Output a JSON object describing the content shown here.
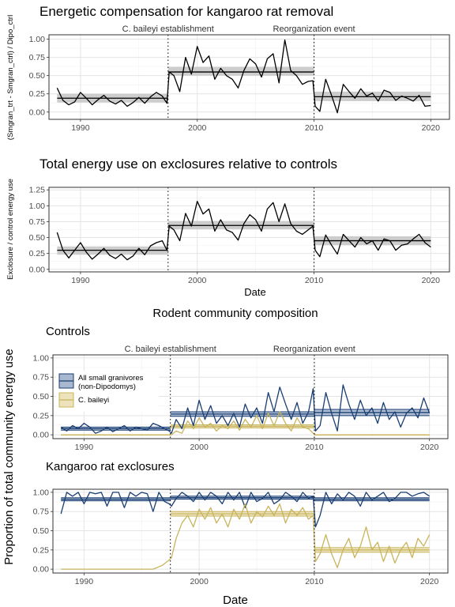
{
  "figure_title": "Rodent community composition",
  "shared_ylabel": "Proportion of total community energy use",
  "shared_xlabel": "Date",
  "colors": {
    "granivores": "#1a3e72",
    "granivores_fill": "#a8b8cf",
    "baileyi": "#c8b45c",
    "baileyi_fill": "#ece2bb",
    "band": "#c8c8c8"
  },
  "chart_data": [
    {
      "type": "line",
      "title": "Energetic compensation for kangaroo rat removal",
      "xlabel": "",
      "ylabel": "(Smgran_trt - Smgran_ctrl) / Dipo_ctrl",
      "xlim": [
        1987.3,
        2021.6
      ],
      "ylim": [
        -0.1,
        1.06
      ],
      "xticks": [
        1990,
        2000,
        2010,
        2020
      ],
      "yticks": [
        0.0,
        0.25,
        0.5,
        0.75,
        1.0
      ],
      "ytick_labels": [
        "0.00",
        "0.25",
        "0.50",
        "0.75",
        "1.00"
      ],
      "vlines": [
        {
          "x": 1997.5,
          "label": "C. baileyi establishment"
        },
        {
          "x": 2010.0,
          "label": "Reorganization event"
        }
      ],
      "x": [
        1988.0,
        1988.5,
        1989.0,
        1989.5,
        1990.0,
        1990.5,
        1991.0,
        1991.5,
        1992.0,
        1992.5,
        1993.0,
        1993.5,
        1994.0,
        1994.5,
        1995.0,
        1995.5,
        1996.0,
        1996.5,
        1997.0,
        1997.4,
        1997.6,
        1998.0,
        1998.5,
        1999.0,
        1999.5,
        2000.0,
        2000.5,
        2001.0,
        2001.5,
        2002.0,
        2002.5,
        2003.0,
        2003.5,
        2004.0,
        2004.5,
        2005.0,
        2005.5,
        2006.0,
        2006.5,
        2007.0,
        2007.5,
        2008.0,
        2008.5,
        2009.0,
        2009.5,
        2009.9,
        2010.1,
        2010.5,
        2011.0,
        2011.5,
        2012.0,
        2012.5,
        2013.0,
        2013.5,
        2014.0,
        2014.5,
        2015.0,
        2015.5,
        2016.0,
        2016.5,
        2017.0,
        2017.5,
        2018.0,
        2018.5,
        2019.0,
        2019.5,
        2020.0
      ],
      "y": [
        0.33,
        0.16,
        0.1,
        0.14,
        0.27,
        0.19,
        0.1,
        0.17,
        0.23,
        0.15,
        0.11,
        0.16,
        0.08,
        0.13,
        0.2,
        0.12,
        0.21,
        0.27,
        0.22,
        0.12,
        0.55,
        0.5,
        0.28,
        0.75,
        0.52,
        0.9,
        0.68,
        0.77,
        0.45,
        0.6,
        0.5,
        0.45,
        0.33,
        0.57,
        0.73,
        0.66,
        0.48,
        0.73,
        0.8,
        0.4,
        0.99,
        0.57,
        0.5,
        0.38,
        0.42,
        0.43,
        0.08,
        0.01,
        0.45,
        0.23,
        -0.01,
        0.38,
        0.28,
        0.19,
        0.32,
        0.22,
        0.26,
        0.15,
        0.3,
        0.27,
        0.16,
        0.22,
        0.19,
        0.15,
        0.23,
        0.08,
        0.09
      ],
      "segments": [
        {
          "x0": 1988.0,
          "x1": 1997.5,
          "mean": 0.19,
          "lo": 0.13,
          "hi": 0.25
        },
        {
          "x0": 1997.5,
          "x1": 2010.0,
          "mean": 0.55,
          "lo": 0.5,
          "hi": 0.62
        },
        {
          "x0": 2010.0,
          "x1": 2020.0,
          "mean": 0.21,
          "lo": 0.15,
          "hi": 0.28
        }
      ]
    },
    {
      "type": "line",
      "title": "Total energy use on exclosures relative to controls",
      "xlabel": "Date",
      "ylabel": "Exclosure / control energy use",
      "xlim": [
        1987.3,
        2021.6
      ],
      "ylim": [
        -0.04,
        1.29
      ],
      "xticks": [
        1990,
        2000,
        2010,
        2020
      ],
      "yticks": [
        0.0,
        0.25,
        0.5,
        0.75,
        1.0,
        1.25
      ],
      "ytick_labels": [
        "0.00",
        "0.25",
        "0.50",
        "0.75",
        "1.00",
        "1.25"
      ],
      "vlines": [
        {
          "x": 1997.5,
          "label": ""
        },
        {
          "x": 2010.0,
          "label": ""
        }
      ],
      "x": [
        1988.0,
        1988.5,
        1989.0,
        1989.5,
        1990.0,
        1990.5,
        1991.0,
        1991.5,
        1992.0,
        1992.5,
        1993.0,
        1993.5,
        1994.0,
        1994.5,
        1995.0,
        1995.5,
        1996.0,
        1996.5,
        1997.0,
        1997.4,
        1997.6,
        1998.0,
        1998.5,
        1999.0,
        1999.5,
        2000.0,
        2000.5,
        2001.0,
        2001.5,
        2002.0,
        2002.5,
        2003.0,
        2003.5,
        2004.0,
        2004.5,
        2005.0,
        2005.5,
        2006.0,
        2006.5,
        2007.0,
        2007.5,
        2008.0,
        2008.5,
        2009.0,
        2009.5,
        2009.9,
        2010.1,
        2010.5,
        2011.0,
        2011.5,
        2012.0,
        2012.5,
        2013.0,
        2013.5,
        2014.0,
        2014.5,
        2015.0,
        2015.5,
        2016.0,
        2016.5,
        2017.0,
        2017.5,
        2018.0,
        2018.5,
        2019.0,
        2019.5,
        2020.0
      ],
      "y": [
        0.58,
        0.3,
        0.18,
        0.3,
        0.42,
        0.27,
        0.16,
        0.24,
        0.33,
        0.22,
        0.17,
        0.24,
        0.15,
        0.21,
        0.33,
        0.23,
        0.37,
        0.42,
        0.45,
        0.3,
        0.68,
        0.62,
        0.45,
        0.88,
        0.68,
        1.07,
        0.87,
        0.95,
        0.6,
        0.78,
        0.62,
        0.58,
        0.46,
        0.72,
        0.86,
        0.78,
        0.6,
        0.95,
        1.05,
        0.75,
        1.03,
        0.72,
        0.6,
        0.55,
        0.62,
        0.68,
        0.3,
        0.2,
        0.54,
        0.38,
        0.24,
        0.55,
        0.45,
        0.35,
        0.5,
        0.4,
        0.45,
        0.3,
        0.48,
        0.45,
        0.3,
        0.38,
        0.4,
        0.48,
        0.55,
        0.42,
        0.35
      ],
      "segments": [
        {
          "x0": 1988.0,
          "x1": 1997.5,
          "mean": 0.3,
          "lo": 0.23,
          "hi": 0.36
        },
        {
          "x0": 1997.5,
          "x1": 2010.0,
          "mean": 0.69,
          "lo": 0.63,
          "hi": 0.76
        },
        {
          "x0": 2010.0,
          "x1": 2020.0,
          "mean": 0.45,
          "lo": 0.38,
          "hi": 0.52
        }
      ]
    },
    {
      "type": "line",
      "title": "Controls",
      "xlabel": "",
      "ylabel": "",
      "xlim": [
        1987.3,
        2021.6
      ],
      "ylim": [
        -0.05,
        1.04
      ],
      "xticks": [
        1990,
        2000,
        2010,
        2020
      ],
      "yticks": [
        0.0,
        0.25,
        0.5,
        0.75,
        1.0
      ],
      "ytick_labels": [
        "0.00",
        "0.25",
        "0.50",
        "0.75",
        "1.00"
      ],
      "vlines": [
        {
          "x": 1997.5,
          "label": "C. baileyi establishment"
        },
        {
          "x": 2010.0,
          "label": "Reorganization event"
        }
      ],
      "legend": [
        {
          "name": "All small granivores",
          "name2": "(non-Dipodomys)",
          "color": "#1a3e72",
          "fill": "#a8b8cf"
        },
        {
          "name": "C. baileyi",
          "name2": "",
          "color": "#c8b45c",
          "fill": "#ece2bb"
        }
      ],
      "legend_position": "top-left",
      "series": [
        {
          "name": "All small granivores (non-Dipodomys)",
          "color": "#1a3e72",
          "x": [
            1988.0,
            1988.5,
            1989.0,
            1989.5,
            1990.0,
            1990.5,
            1991.0,
            1991.5,
            1992.0,
            1992.5,
            1993.0,
            1993.5,
            1994.0,
            1994.5,
            1995.0,
            1995.5,
            1996.0,
            1996.5,
            1997.0,
            1997.4,
            1997.6,
            1998.0,
            1998.5,
            1999.0,
            1999.5,
            2000.0,
            2000.5,
            2001.0,
            2001.5,
            2002.0,
            2002.5,
            2003.0,
            2003.5,
            2004.0,
            2004.5,
            2005.0,
            2005.5,
            2006.0,
            2006.5,
            2007.0,
            2007.5,
            2008.0,
            2008.5,
            2009.0,
            2009.5,
            2009.9,
            2010.1,
            2010.5,
            2011.0,
            2011.5,
            2012.0,
            2012.5,
            2013.0,
            2013.5,
            2014.0,
            2014.5,
            2015.0,
            2015.5,
            2016.0,
            2016.5,
            2017.0,
            2017.5,
            2018.0,
            2018.5,
            2019.0,
            2019.5,
            2020.0
          ],
          "y": [
            0.1,
            0.05,
            0.12,
            0.08,
            0.15,
            0.1,
            0.02,
            0.05,
            0.1,
            0.04,
            0.08,
            0.12,
            0.05,
            0.1,
            0.08,
            0.06,
            0.15,
            0.12,
            0.08,
            0.05,
            0.02,
            0.2,
            0.08,
            0.35,
            0.12,
            0.45,
            0.2,
            0.38,
            0.15,
            0.25,
            0.12,
            0.28,
            0.1,
            0.4,
            0.22,
            0.35,
            0.15,
            0.55,
            0.3,
            0.62,
            0.4,
            0.2,
            0.42,
            0.15,
            0.3,
            0.6,
            0.05,
            0.12,
            0.55,
            0.28,
            0.05,
            0.65,
            0.4,
            0.2,
            0.45,
            0.25,
            0.35,
            0.15,
            0.42,
            0.2,
            0.3,
            0.1,
            0.28,
            0.35,
            0.22,
            0.48,
            0.28
          ]
        },
        {
          "name": "C. baileyi",
          "color": "#c8b45c",
          "x": [
            1988.0,
            1990.0,
            1995.0,
            1997.4,
            1997.6,
            1998.0,
            1998.5,
            1999.0,
            1999.5,
            2000.0,
            2000.5,
            2001.0,
            2001.5,
            2002.0,
            2002.5,
            2003.0,
            2003.5,
            2004.0,
            2004.5,
            2005.0,
            2005.5,
            2006.0,
            2006.5,
            2007.0,
            2007.5,
            2008.0,
            2008.5,
            2009.0,
            2009.5,
            2009.9,
            2010.1,
            2012.0,
            2015.0,
            2018.0,
            2020.0
          ],
          "y": [
            0.0,
            0.0,
            0.0,
            0.0,
            0.0,
            0.05,
            0.02,
            0.18,
            0.08,
            0.22,
            0.1,
            0.15,
            0.05,
            0.12,
            0.08,
            0.18,
            0.06,
            0.2,
            0.1,
            0.25,
            0.08,
            0.28,
            0.12,
            0.3,
            0.15,
            0.05,
            0.22,
            0.1,
            0.08,
            0.02,
            0.0,
            0.0,
            0.0,
            0.0,
            0.0
          ]
        }
      ],
      "segments": [
        {
          "series": 0,
          "x0": 1988.0,
          "x1": 1997.5,
          "mean": 0.08,
          "lo": 0.06,
          "hi": 0.1
        },
        {
          "series": 0,
          "x0": 1997.5,
          "x1": 2010.0,
          "mean": 0.27,
          "lo": 0.24,
          "hi": 0.3
        },
        {
          "series": 0,
          "x0": 2010.0,
          "x1": 2020.0,
          "mean": 0.29,
          "lo": 0.25,
          "hi": 0.33
        },
        {
          "series": 1,
          "x0": 1988.0,
          "x1": 1997.5,
          "mean": 0.0,
          "lo": 0.0,
          "hi": 0.0
        },
        {
          "series": 1,
          "x0": 1997.5,
          "x1": 2010.0,
          "mean": 0.11,
          "lo": 0.09,
          "hi": 0.13
        },
        {
          "series": 1,
          "x0": 2010.0,
          "x1": 2020.0,
          "mean": 0.0,
          "lo": 0.0,
          "hi": 0.0
        }
      ]
    },
    {
      "type": "line",
      "title": "Kangaroo rat exclosures",
      "xlabel": "",
      "ylabel": "",
      "xlim": [
        1987.3,
        2021.6
      ],
      "ylim": [
        -0.05,
        1.04
      ],
      "xticks": [
        1990,
        2000,
        2010,
        2020
      ],
      "yticks": [
        0.0,
        0.25,
        0.5,
        0.75,
        1.0
      ],
      "ytick_labels": [
        "0.00",
        "0.25",
        "0.50",
        "0.75",
        "1.00"
      ],
      "vlines": [
        {
          "x": 1997.5,
          "label": ""
        },
        {
          "x": 2010.0,
          "label": ""
        }
      ],
      "series": [
        {
          "name": "All small granivores (non-Dipodomys)",
          "color": "#1a3e72",
          "x": [
            1988.0,
            1988.5,
            1989.0,
            1989.5,
            1990.0,
            1990.5,
            1991.0,
            1991.5,
            1992.0,
            1992.5,
            1993.0,
            1993.5,
            1994.0,
            1994.5,
            1995.0,
            1995.5,
            1996.0,
            1996.5,
            1997.0,
            1997.4,
            1997.6,
            1998.0,
            1998.5,
            1999.0,
            1999.5,
            2000.0,
            2000.5,
            2001.0,
            2001.5,
            2002.0,
            2002.5,
            2003.0,
            2003.5,
            2004.0,
            2004.5,
            2005.0,
            2005.5,
            2006.0,
            2006.5,
            2007.0,
            2007.5,
            2008.0,
            2008.5,
            2009.0,
            2009.5,
            2009.9,
            2010.1,
            2010.5,
            2011.0,
            2011.5,
            2012.0,
            2012.5,
            2013.0,
            2013.5,
            2014.0,
            2014.5,
            2015.0,
            2015.5,
            2016.0,
            2016.5,
            2017.0,
            2017.5,
            2018.0,
            2018.5,
            2019.0,
            2019.5,
            2020.0
          ],
          "y": [
            0.72,
            1.0,
            0.95,
            1.0,
            0.85,
            1.0,
            0.98,
            1.0,
            0.82,
            1.0,
            1.0,
            0.8,
            1.0,
            0.95,
            1.0,
            0.98,
            0.75,
            1.0,
            0.88,
            0.85,
            0.82,
            0.92,
            1.0,
            0.95,
            0.88,
            1.0,
            0.9,
            1.0,
            0.95,
            0.85,
            1.0,
            0.9,
            1.0,
            0.8,
            1.0,
            0.88,
            0.92,
            1.0,
            0.85,
            0.9,
            1.0,
            0.95,
            0.88,
            1.0,
            0.92,
            0.95,
            0.55,
            0.7,
            1.0,
            0.85,
            0.98,
            0.9,
            1.0,
            0.95,
            0.82,
            1.0,
            0.9,
            0.95,
            1.0,
            0.88,
            0.92,
            1.0,
            1.0,
            0.95,
            0.98,
            1.0,
            0.95
          ]
        },
        {
          "name": "C. baileyi",
          "color": "#c8b45c",
          "x": [
            1988.0,
            1990.0,
            1993.0,
            1996.0,
            1996.8,
            1997.4,
            1997.6,
            1998.0,
            1998.5,
            1999.0,
            1999.5,
            2000.0,
            2000.5,
            2001.0,
            2001.5,
            2002.0,
            2002.5,
            2003.0,
            2003.5,
            2004.0,
            2004.5,
            2005.0,
            2005.5,
            2006.0,
            2006.5,
            2007.0,
            2007.5,
            2008.0,
            2008.5,
            2009.0,
            2009.5,
            2009.9,
            2010.1,
            2010.5,
            2011.0,
            2011.5,
            2012.0,
            2012.5,
            2013.0,
            2013.5,
            2014.0,
            2014.5,
            2015.0,
            2015.5,
            2016.0,
            2016.5,
            2017.0,
            2017.5,
            2018.0,
            2018.5,
            2019.0,
            2019.5,
            2020.0
          ],
          "y": [
            0.0,
            0.0,
            0.0,
            0.0,
            0.05,
            0.12,
            0.15,
            0.4,
            0.6,
            0.7,
            0.55,
            0.78,
            0.65,
            0.8,
            0.6,
            0.72,
            0.55,
            0.78,
            0.65,
            0.85,
            0.6,
            0.75,
            0.68,
            0.82,
            0.7,
            0.85,
            0.6,
            0.78,
            0.7,
            0.8,
            0.65,
            0.7,
            0.1,
            0.2,
            0.45,
            0.2,
            0.02,
            0.25,
            0.4,
            0.15,
            0.3,
            0.55,
            0.25,
            0.35,
            0.1,
            0.3,
            0.08,
            0.25,
            0.35,
            0.15,
            0.4,
            0.3,
            0.45
          ]
        }
      ],
      "segments": [
        {
          "series": 0,
          "x0": 1988.0,
          "x1": 1997.5,
          "mean": 0.91,
          "lo": 0.89,
          "hi": 0.93
        },
        {
          "series": 0,
          "x0": 1997.5,
          "x1": 2010.0,
          "mean": 0.93,
          "lo": 0.91,
          "hi": 0.95
        },
        {
          "series": 0,
          "x0": 2010.0,
          "x1": 2020.0,
          "mean": 0.91,
          "lo": 0.89,
          "hi": 0.93
        },
        {
          "series": 1,
          "x0": 1997.5,
          "x1": 2010.0,
          "mean": 0.72,
          "lo": 0.69,
          "hi": 0.75
        },
        {
          "series": 1,
          "x0": 2010.0,
          "x1": 2020.0,
          "mean": 0.25,
          "lo": 0.22,
          "hi": 0.28
        }
      ]
    }
  ]
}
